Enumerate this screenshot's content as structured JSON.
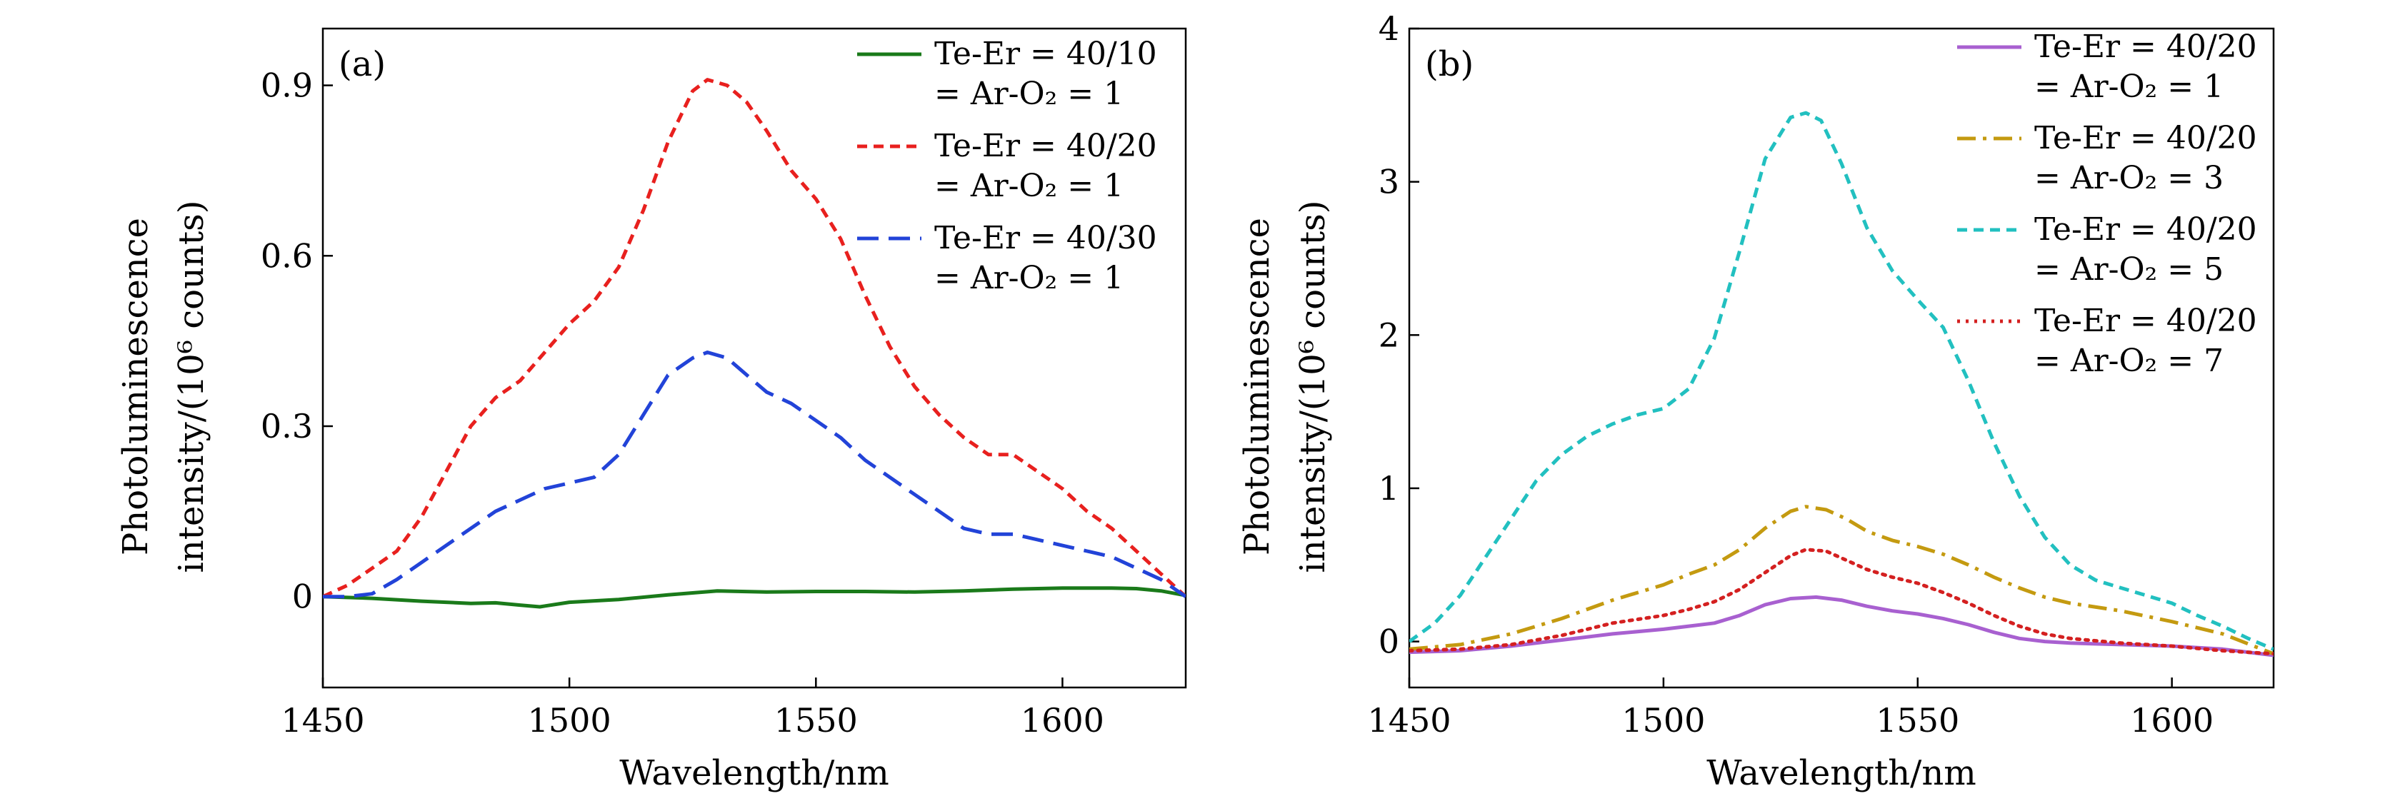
{
  "chart_data": [
    {
      "type": "line",
      "panel_label": "(a)",
      "xlabel": "Wavelength/nm",
      "ylabel_line1": "Photoluminescence",
      "ylabel_line2": "intensity/(10⁶ counts)",
      "xlim": [
        1450,
        1625
      ],
      "ylim": [
        -0.16,
        1.0
      ],
      "xticks": [
        1450,
        1500,
        1550,
        1600
      ],
      "yticks": [
        0,
        0.3,
        0.6,
        0.9
      ],
      "ytick_labels": [
        "0",
        "0.3",
        "0.6",
        "0.9"
      ],
      "grid": false,
      "legend_position": "top-right",
      "series": [
        {
          "name": "Te-Er = 40/10",
          "name_line2": "= Ar-O₂ = 1",
          "color": "#1a7a1a",
          "dash": "solid",
          "x": [
            1450,
            1460,
            1470,
            1480,
            1485,
            1490,
            1494,
            1500,
            1510,
            1520,
            1530,
            1540,
            1550,
            1560,
            1570,
            1580,
            1590,
            1600,
            1610,
            1615,
            1620,
            1625
          ],
          "y": [
            0,
            -0.003,
            -0.008,
            -0.012,
            -0.011,
            -0.015,
            -0.018,
            -0.01,
            -0.005,
            0.003,
            0.01,
            0.008,
            0.009,
            0.009,
            0.008,
            0.01,
            0.013,
            0.015,
            0.015,
            0.014,
            0.01,
            0.002
          ]
        },
        {
          "name": "Te-Er = 40/20",
          "name_line2": "= Ar-O₂ = 1",
          "color": "#e8201e",
          "dash": "short-dash",
          "x": [
            1450,
            1455,
            1460,
            1465,
            1470,
            1475,
            1480,
            1485,
            1490,
            1495,
            1500,
            1505,
            1510,
            1515,
            1520,
            1525,
            1528,
            1532,
            1536,
            1540,
            1545,
            1550,
            1555,
            1560,
            1565,
            1570,
            1575,
            1580,
            1585,
            1590,
            1595,
            1600,
            1605,
            1610,
            1615,
            1620,
            1625
          ],
          "y": [
            0,
            0.02,
            0.05,
            0.08,
            0.14,
            0.22,
            0.3,
            0.35,
            0.38,
            0.43,
            0.48,
            0.52,
            0.58,
            0.68,
            0.8,
            0.89,
            0.91,
            0.9,
            0.87,
            0.82,
            0.75,
            0.7,
            0.63,
            0.53,
            0.44,
            0.37,
            0.32,
            0.28,
            0.25,
            0.25,
            0.22,
            0.19,
            0.15,
            0.12,
            0.08,
            0.04,
            0.0
          ]
        },
        {
          "name": "Te-Er = 40/30",
          "name_line2": "= Ar-O₂ = 1",
          "color": "#2243d8",
          "dash": "long-dash",
          "x": [
            1450,
            1455,
            1460,
            1465,
            1470,
            1475,
            1480,
            1485,
            1490,
            1495,
            1500,
            1505,
            1510,
            1515,
            1520,
            1525,
            1528,
            1532,
            1536,
            1540,
            1545,
            1550,
            1555,
            1560,
            1565,
            1570,
            1575,
            1580,
            1585,
            1590,
            1595,
            1600,
            1605,
            1610,
            1615,
            1620,
            1625
          ],
          "y": [
            0,
            0.0,
            0.005,
            0.03,
            0.06,
            0.09,
            0.12,
            0.15,
            0.17,
            0.19,
            0.2,
            0.21,
            0.25,
            0.32,
            0.39,
            0.42,
            0.43,
            0.42,
            0.39,
            0.36,
            0.34,
            0.31,
            0.28,
            0.24,
            0.21,
            0.18,
            0.15,
            0.12,
            0.11,
            0.11,
            0.1,
            0.09,
            0.08,
            0.07,
            0.05,
            0.03,
            0.0
          ]
        }
      ]
    },
    {
      "type": "line",
      "panel_label": "(b)",
      "xlabel": "Wavelength/nm",
      "ylabel_line1": "Photoluminescence",
      "ylabel_line2": "intensity/(10⁶ counts)",
      "xlim": [
        1450,
        1620
      ],
      "ylim": [
        -0.3,
        4.0
      ],
      "xticks": [
        1450,
        1500,
        1550,
        1600
      ],
      "yticks": [
        0,
        1,
        2,
        3,
        4
      ],
      "ytick_labels": [
        "0",
        "1",
        "2",
        "3",
        "4"
      ],
      "grid": false,
      "legend_position": "top-right",
      "series": [
        {
          "name": "Te-Er = 40/20",
          "name_line2": "= Ar-O₂ = 1",
          "color": "#a860d0",
          "dash": "solid",
          "x": [
            1450,
            1460,
            1470,
            1480,
            1490,
            1500,
            1505,
            1510,
            1515,
            1520,
            1525,
            1530,
            1535,
            1540,
            1545,
            1550,
            1555,
            1560,
            1565,
            1570,
            1575,
            1580,
            1590,
            1600,
            1610,
            1620
          ],
          "y": [
            -0.07,
            -0.06,
            -0.03,
            0.01,
            0.05,
            0.08,
            0.1,
            0.12,
            0.17,
            0.24,
            0.28,
            0.29,
            0.27,
            0.23,
            0.2,
            0.18,
            0.15,
            0.11,
            0.06,
            0.02,
            0.0,
            -0.01,
            -0.02,
            -0.03,
            -0.05,
            -0.09
          ]
        },
        {
          "name": "Te-Er = 40/20",
          "name_line2": "= Ar-O₂ = 3",
          "color": "#c49a10",
          "dash": "dash-dot",
          "x": [
            1450,
            1460,
            1470,
            1480,
            1490,
            1500,
            1505,
            1510,
            1515,
            1520,
            1525,
            1528,
            1532,
            1536,
            1540,
            1545,
            1550,
            1555,
            1560,
            1565,
            1570,
            1575,
            1580,
            1590,
            1600,
            1610,
            1620
          ],
          "y": [
            -0.05,
            -0.02,
            0.05,
            0.15,
            0.27,
            0.37,
            0.44,
            0.5,
            0.6,
            0.74,
            0.85,
            0.88,
            0.86,
            0.8,
            0.72,
            0.66,
            0.62,
            0.57,
            0.5,
            0.42,
            0.35,
            0.29,
            0.25,
            0.2,
            0.13,
            0.05,
            -0.08
          ]
        },
        {
          "name": "Te-Er = 40/20",
          "name_line2": "= Ar-O₂ = 5",
          "color": "#22c0c0",
          "dash": "short-dash",
          "x": [
            1450,
            1455,
            1460,
            1465,
            1470,
            1475,
            1480,
            1485,
            1490,
            1495,
            1500,
            1505,
            1510,
            1515,
            1520,
            1525,
            1528,
            1531,
            1535,
            1540,
            1545,
            1550,
            1555,
            1560,
            1565,
            1570,
            1575,
            1580,
            1585,
            1590,
            1595,
            1600,
            1605,
            1610,
            1615,
            1620
          ],
          "y": [
            0.0,
            0.12,
            0.3,
            0.55,
            0.8,
            1.05,
            1.22,
            1.34,
            1.42,
            1.48,
            1.52,
            1.65,
            1.98,
            2.55,
            3.15,
            3.42,
            3.45,
            3.4,
            3.12,
            2.7,
            2.42,
            2.23,
            2.05,
            1.7,
            1.3,
            0.95,
            0.68,
            0.5,
            0.4,
            0.35,
            0.3,
            0.25,
            0.17,
            0.1,
            0.02,
            -0.05
          ]
        },
        {
          "name": "Te-Er = 40/20",
          "name_line2": "= Ar-O₂ = 7",
          "color": "#d42020",
          "dash": "dotted",
          "x": [
            1450,
            1460,
            1470,
            1480,
            1490,
            1500,
            1505,
            1510,
            1515,
            1520,
            1525,
            1528,
            1532,
            1536,
            1540,
            1545,
            1550,
            1555,
            1560,
            1565,
            1570,
            1575,
            1580,
            1590,
            1600,
            1610,
            1620
          ],
          "y": [
            -0.06,
            -0.05,
            -0.02,
            0.04,
            0.12,
            0.17,
            0.21,
            0.26,
            0.34,
            0.45,
            0.56,
            0.6,
            0.59,
            0.53,
            0.47,
            0.42,
            0.38,
            0.32,
            0.25,
            0.17,
            0.1,
            0.05,
            0.02,
            -0.01,
            -0.03,
            -0.06,
            -0.08
          ]
        }
      ]
    }
  ]
}
